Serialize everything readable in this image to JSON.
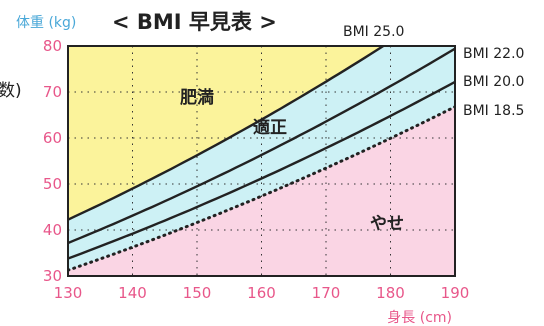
{
  "colors": {
    "obese_region": "#fbf39b",
    "normal_region": "#cdf1f5",
    "thin_region": "#fad5e4",
    "line": "#222222",
    "tick": "#e8578a",
    "y_title": "#4aa8d8"
  },
  "chart_data": {
    "type": "line",
    "title": "< BMI 早見表 >",
    "ylabel": "体重 (kg)",
    "xlabel": "身長 (cm)",
    "xlim": [
      130,
      190
    ],
    "ylim": [
      30,
      80
    ],
    "x_ticks": [
      130,
      140,
      150,
      160,
      170,
      180,
      190
    ],
    "y_ticks": [
      30,
      40,
      50,
      60,
      70,
      80
    ],
    "grid": true,
    "grid_style": "dotted",
    "left_cut_label": "数)",
    "series": [
      {
        "name": "BMI 25.0",
        "bmi": 25.0,
        "style": "solid"
      },
      {
        "name": "BMI 22.0",
        "bmi": 22.0,
        "style": "solid"
      },
      {
        "name": "BMI 20.0",
        "bmi": 20.0,
        "style": "solid"
      },
      {
        "name": "BMI 18.5",
        "bmi": 18.5,
        "style": "dotted"
      }
    ],
    "regions": [
      {
        "label": "肥満",
        "between": [
          "top",
          "BMI 25.0"
        ]
      },
      {
        "label": "適正",
        "between": [
          "BMI 25.0",
          "BMI 18.5"
        ]
      },
      {
        "label": "やせ",
        "between": [
          "BMI 18.5",
          "bottom"
        ]
      }
    ]
  }
}
